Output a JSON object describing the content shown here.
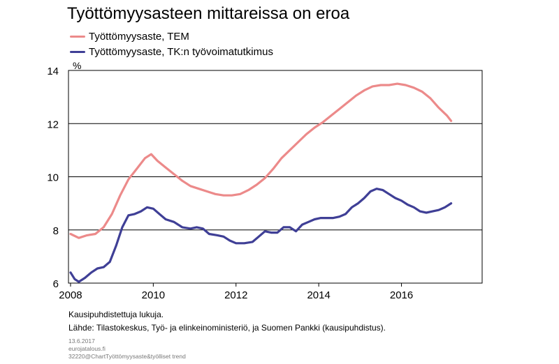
{
  "title": "Työttömyysasteen mittareissa on eroa",
  "unit": "%",
  "footnote1": "Kausipuhdistettuja lukuja.",
  "footnote2": "Lähde: Tilastokeskus, Työ- ja elinkeinoministeriö, ja Suomen Pankki (kausipuhdistus).",
  "meta": {
    "date": "13.6.2017",
    "site": "eurojatalous.fi",
    "code": "32220@ChartTyöttömyysaste&työlliset trend"
  },
  "chart_data": {
    "type": "line",
    "xlim": [
      2007.95,
      2017.95
    ],
    "ylim": [
      6,
      14
    ],
    "x_ticks": [
      2008,
      2010,
      2012,
      2014,
      2016
    ],
    "y_ticks": [
      6,
      8,
      10,
      12,
      14
    ],
    "grid": "horizontal",
    "legend_placement": "top-left",
    "series": [
      {
        "name": "Työttömyysaste, TEM",
        "color": "#ec8a8a",
        "x": [
          2008.0,
          2008.2,
          2008.4,
          2008.6,
          2008.8,
          2009.0,
          2009.2,
          2009.4,
          2009.6,
          2009.8,
          2009.95,
          2010.1,
          2010.3,
          2010.5,
          2010.7,
          2010.9,
          2011.1,
          2011.3,
          2011.5,
          2011.7,
          2011.9,
          2012.1,
          2012.3,
          2012.5,
          2012.7,
          2012.9,
          2013.1,
          2013.3,
          2013.5,
          2013.7,
          2013.9,
          2014.1,
          2014.3,
          2014.5,
          2014.7,
          2014.9,
          2015.1,
          2015.3,
          2015.5,
          2015.7,
          2015.9,
          2016.1,
          2016.3,
          2016.5,
          2016.7,
          2016.9,
          2017.1,
          2017.2
        ],
        "values": [
          7.85,
          7.7,
          7.8,
          7.85,
          8.1,
          8.6,
          9.3,
          9.9,
          10.3,
          10.7,
          10.85,
          10.6,
          10.35,
          10.1,
          9.85,
          9.65,
          9.55,
          9.45,
          9.35,
          9.3,
          9.3,
          9.35,
          9.5,
          9.7,
          9.95,
          10.3,
          10.7,
          11.0,
          11.3,
          11.6,
          11.85,
          12.05,
          12.3,
          12.55,
          12.8,
          13.05,
          13.25,
          13.4,
          13.45,
          13.45,
          13.5,
          13.45,
          13.35,
          13.2,
          12.95,
          12.6,
          12.3,
          12.1
        ]
      },
      {
        "name": "Työttömyysaste, TK:n työvoimatutkimus",
        "color": "#3f3f96",
        "x": [
          2008.0,
          2008.1,
          2008.2,
          2008.35,
          2008.5,
          2008.65,
          2008.8,
          2008.95,
          2009.1,
          2009.25,
          2009.4,
          2009.55,
          2009.7,
          2009.85,
          2010.0,
          2010.15,
          2010.3,
          2010.5,
          2010.7,
          2010.9,
          2011.05,
          2011.2,
          2011.35,
          2011.55,
          2011.7,
          2011.85,
          2012.0,
          2012.2,
          2012.4,
          2012.55,
          2012.7,
          2012.85,
          2013.0,
          2013.15,
          2013.3,
          2013.45,
          2013.6,
          2013.75,
          2013.9,
          2014.05,
          2014.2,
          2014.35,
          2014.5,
          2014.65,
          2014.8,
          2014.95,
          2015.1,
          2015.25,
          2015.4,
          2015.55,
          2015.7,
          2015.85,
          2016.0,
          2016.15,
          2016.3,
          2016.45,
          2016.6,
          2016.75,
          2016.9,
          2017.05,
          2017.2
        ],
        "values": [
          6.4,
          6.15,
          6.05,
          6.2,
          6.4,
          6.55,
          6.6,
          6.8,
          7.4,
          8.1,
          8.55,
          8.6,
          8.7,
          8.85,
          8.8,
          8.6,
          8.4,
          8.3,
          8.1,
          8.05,
          8.1,
          8.05,
          7.85,
          7.8,
          7.75,
          7.6,
          7.5,
          7.5,
          7.55,
          7.75,
          7.95,
          7.9,
          7.9,
          8.1,
          8.1,
          7.95,
          8.2,
          8.3,
          8.4,
          8.45,
          8.45,
          8.45,
          8.5,
          8.6,
          8.85,
          9.0,
          9.2,
          9.45,
          9.55,
          9.5,
          9.35,
          9.2,
          9.1,
          8.95,
          8.85,
          8.7,
          8.65,
          8.7,
          8.75,
          8.85,
          9.0
        ]
      }
    ]
  }
}
